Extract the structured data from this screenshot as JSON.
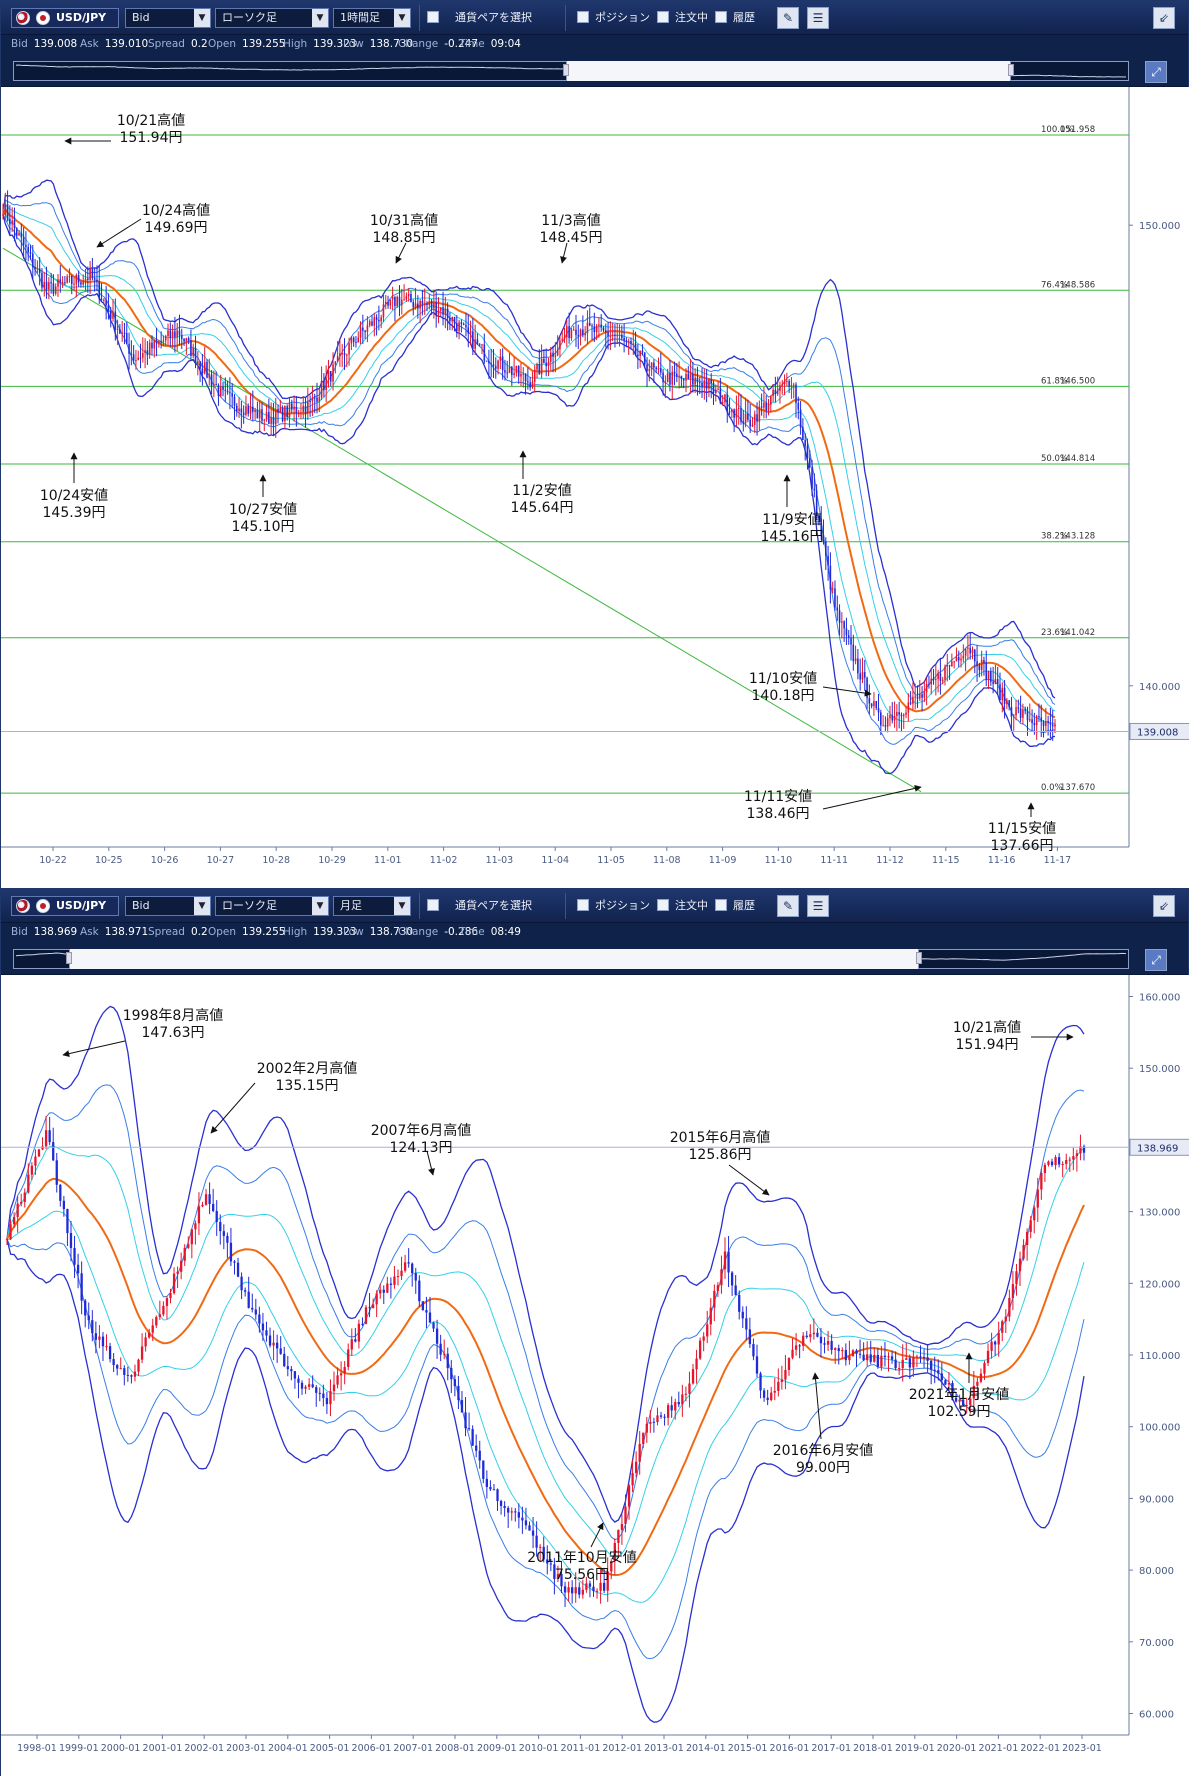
{
  "panels": [
    {
      "pair": "USD/JPY",
      "price_type": "Bid",
      "chart_type": "ローソク足",
      "timeframe": "1時間足",
      "pair_select_label": "通貨ペアを選択",
      "positions_label": "ポジション",
      "orders_label": "注文中",
      "history_label": "履歴",
      "info": [
        {
          "k": "Bid",
          "v": "139.008"
        },
        {
          "k": "Ask",
          "v": "139.010"
        },
        {
          "k": "Spread",
          "v": "0.2"
        },
        {
          "k": "Open",
          "v": "139.255"
        },
        {
          "k": "High",
          "v": "139.323"
        },
        {
          "k": "Low",
          "v": "138.730"
        },
        {
          "k": "Change",
          "v": "-0.247"
        },
        {
          "k": "Time",
          "v": "09:04"
        }
      ],
      "price_scale_labels": [
        "150.000",
        "140.000"
      ],
      "current_price": "139.008",
      "fib_levels": [
        {
          "pct": "100.0%",
          "value": 151.958
        },
        {
          "pct": "76.4%",
          "value": 148.586
        },
        {
          "pct": "61.8%",
          "value": 146.5
        },
        {
          "pct": "50.0%",
          "value": 144.814
        },
        {
          "pct": "38.2%",
          "value": 143.128
        },
        {
          "pct": "23.6%",
          "value": 141.042
        },
        {
          "pct": "0.0%",
          "value": 137.67
        }
      ],
      "x_labels": [
        "10-22",
        "10-25",
        "10-26",
        "10-27",
        "10-28",
        "10-29",
        "11-01",
        "11-02",
        "11-03",
        "11-04",
        "11-05",
        "11-08",
        "11-09",
        "11-10",
        "11-11",
        "11-12",
        "11-15",
        "11-16",
        "11-17"
      ],
      "annotations": [
        {
          "t": "10/21高値",
          "v": "151.94円"
        },
        {
          "t": "10/24高値",
          "v": "149.69円"
        },
        {
          "t": "10/31高値",
          "v": "148.85円"
        },
        {
          "t": "11/3高値",
          "v": "148.45円"
        },
        {
          "t": "10/24安値",
          "v": "145.39円"
        },
        {
          "t": "10/27安値",
          "v": "145.10円"
        },
        {
          "t": "11/2安値",
          "v": "145.64円"
        },
        {
          "t": "11/9安値",
          "v": "145.16円"
        },
        {
          "t": "11/10安値",
          "v": "140.18円"
        },
        {
          "t": "11/11安値",
          "v": "138.46円"
        },
        {
          "t": "11/15安値",
          "v": "137.66円"
        }
      ],
      "chart_data": {
        "type": "candlestick",
        "ylim": [
          136.5,
          153
        ],
        "x": [
          "10-21",
          "10-22",
          "10-23",
          "10-24",
          "10-25",
          "10-26",
          "10-27",
          "10-28",
          "10-29",
          "10-30",
          "10-31",
          "11-01",
          "11-02",
          "11-03",
          "11-04",
          "11-05",
          "11-08",
          "11-09",
          "11-10",
          "11-11",
          "11-12",
          "11-13",
          "11-14",
          "11-15",
          "11-16"
        ],
        "close": [
          150.4,
          148.6,
          148.9,
          147.1,
          147.7,
          146.3,
          145.8,
          146.1,
          147.5,
          148.4,
          148.2,
          147.2,
          146.6,
          147.8,
          147.6,
          146.7,
          146.6,
          145.7,
          146.7,
          141.6,
          139.2,
          139.8,
          140.9,
          139.5,
          139.0
        ]
      }
    },
    {
      "pair": "USD/JPY",
      "price_type": "Bid",
      "chart_type": "ローソク足",
      "timeframe": "月足",
      "pair_select_label": "通貨ペアを選択",
      "positions_label": "ポジション",
      "orders_label": "注文中",
      "history_label": "履歴",
      "info": [
        {
          "k": "Bid",
          "v": "138.969"
        },
        {
          "k": "Ask",
          "v": "138.971"
        },
        {
          "k": "Spread",
          "v": "0.2"
        },
        {
          "k": "Open",
          "v": "139.255"
        },
        {
          "k": "High",
          "v": "139.323"
        },
        {
          "k": "Low",
          "v": "138.730"
        },
        {
          "k": "Change",
          "v": "-0.286"
        },
        {
          "k": "Time",
          "v": "08:49"
        }
      ],
      "price_scale_labels": [
        "160.000",
        "150.000",
        "130.000",
        "120.000",
        "110.000",
        "100.000",
        "90.000",
        "80.000",
        "70.000",
        "60.000"
      ],
      "current_price": "138.969",
      "x_labels": [
        "1998-01",
        "1999-01",
        "2000-01",
        "2001-01",
        "2002-01",
        "2003-01",
        "2004-01",
        "2005-01",
        "2006-01",
        "2007-01",
        "2008-01",
        "2009-01",
        "2010-01",
        "2011-01",
        "2012-01",
        "2013-01",
        "2014-01",
        "2015-01",
        "2016-01",
        "2017-01",
        "2018-01",
        "2019-01",
        "2020-01",
        "2021-01",
        "2022-01",
        "2023-01"
      ],
      "annotations": [
        {
          "t": "1998年8月高値",
          "v": "147.63円"
        },
        {
          "t": "2002年2月高値",
          "v": "135.15円"
        },
        {
          "t": "2007年6月高値",
          "v": "124.13円"
        },
        {
          "t": "2015年6月高値",
          "v": "125.86円"
        },
        {
          "t": "10/21高値",
          "v": "151.94円"
        },
        {
          "t": "2011年10月安値",
          "v": "75.56円"
        },
        {
          "t": "2016年6月安値",
          "v": "99.00円"
        },
        {
          "t": "2021年1月安値",
          "v": "102.59円"
        }
      ],
      "chart_data": {
        "type": "candlestick",
        "ylim": [
          57,
          163
        ],
        "x": [
          "1997-12",
          "1998-08",
          "1999-06",
          "2000-01",
          "2001-01",
          "2002-02",
          "2003-01",
          "2004-01",
          "2005-01",
          "2006-01",
          "2007-06",
          "2008-01",
          "2009-01",
          "2010-01",
          "2011-10",
          "2012-09",
          "2013-05",
          "2014-01",
          "2015-06",
          "2016-06",
          "2017-01",
          "2018-01",
          "2019-01",
          "2020-01",
          "2021-01",
          "2022-01",
          "2022-06",
          "2022-10"
        ],
        "close": [
          127,
          141,
          115,
          106,
          118,
          133,
          118,
          108,
          103,
          116,
          123,
          109,
          92,
          86,
          77,
          78,
          100,
          104,
          124,
          103,
          113,
          110,
          109,
          109,
          103,
          115,
          136,
          139
        ]
      }
    }
  ]
}
